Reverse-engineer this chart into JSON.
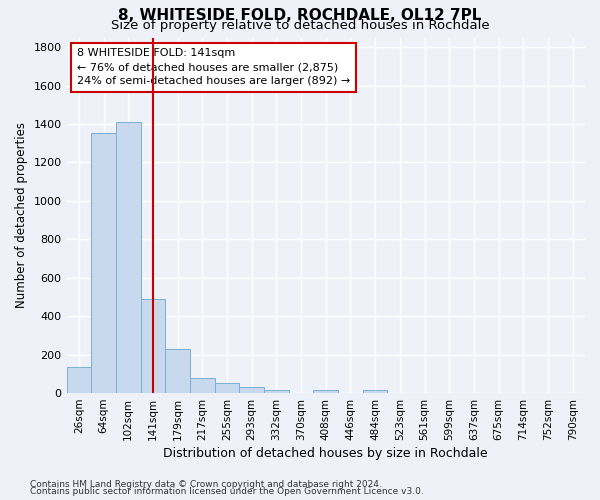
{
  "title": "8, WHITESIDE FOLD, ROCHDALE, OL12 7PL",
  "subtitle": "Size of property relative to detached houses in Rochdale",
  "xlabel": "Distribution of detached houses by size in Rochdale",
  "ylabel": "Number of detached properties",
  "categories": [
    "26sqm",
    "64sqm",
    "102sqm",
    "141sqm",
    "179sqm",
    "217sqm",
    "255sqm",
    "293sqm",
    "332sqm",
    "370sqm",
    "408sqm",
    "446sqm",
    "484sqm",
    "523sqm",
    "561sqm",
    "599sqm",
    "637sqm",
    "675sqm",
    "714sqm",
    "752sqm",
    "790sqm"
  ],
  "values": [
    135,
    1355,
    1410,
    490,
    230,
    80,
    50,
    30,
    18,
    0,
    18,
    0,
    15,
    0,
    0,
    0,
    0,
    0,
    0,
    0,
    0
  ],
  "bar_color": "#c8d9ee",
  "bar_edge_color": "#7aafd4",
  "vline_x_idx": 3,
  "vline_color": "#cc0000",
  "annotation_line1": "8 WHITESIDE FOLD: 141sqm",
  "annotation_line2": "← 76% of detached houses are smaller (2,875)",
  "annotation_line3": "24% of semi-detached houses are larger (892) →",
  "annotation_box_color": "white",
  "annotation_box_edge": "#cc0000",
  "ylim": [
    0,
    1850
  ],
  "yticks": [
    0,
    200,
    400,
    600,
    800,
    1000,
    1200,
    1400,
    1600,
    1800
  ],
  "footer1": "Contains HM Land Registry data © Crown copyright and database right 2024.",
  "footer2": "Contains public sector information licensed under the Open Government Licence v3.0.",
  "bg_color": "#eef2f8",
  "grid_color": "#ffffff",
  "title_fontsize": 11,
  "subtitle_fontsize": 9.5,
  "tick_fontsize": 7.5,
  "ylabel_fontsize": 8.5,
  "xlabel_fontsize": 9,
  "footer_fontsize": 6.5,
  "annot_fontsize": 8
}
